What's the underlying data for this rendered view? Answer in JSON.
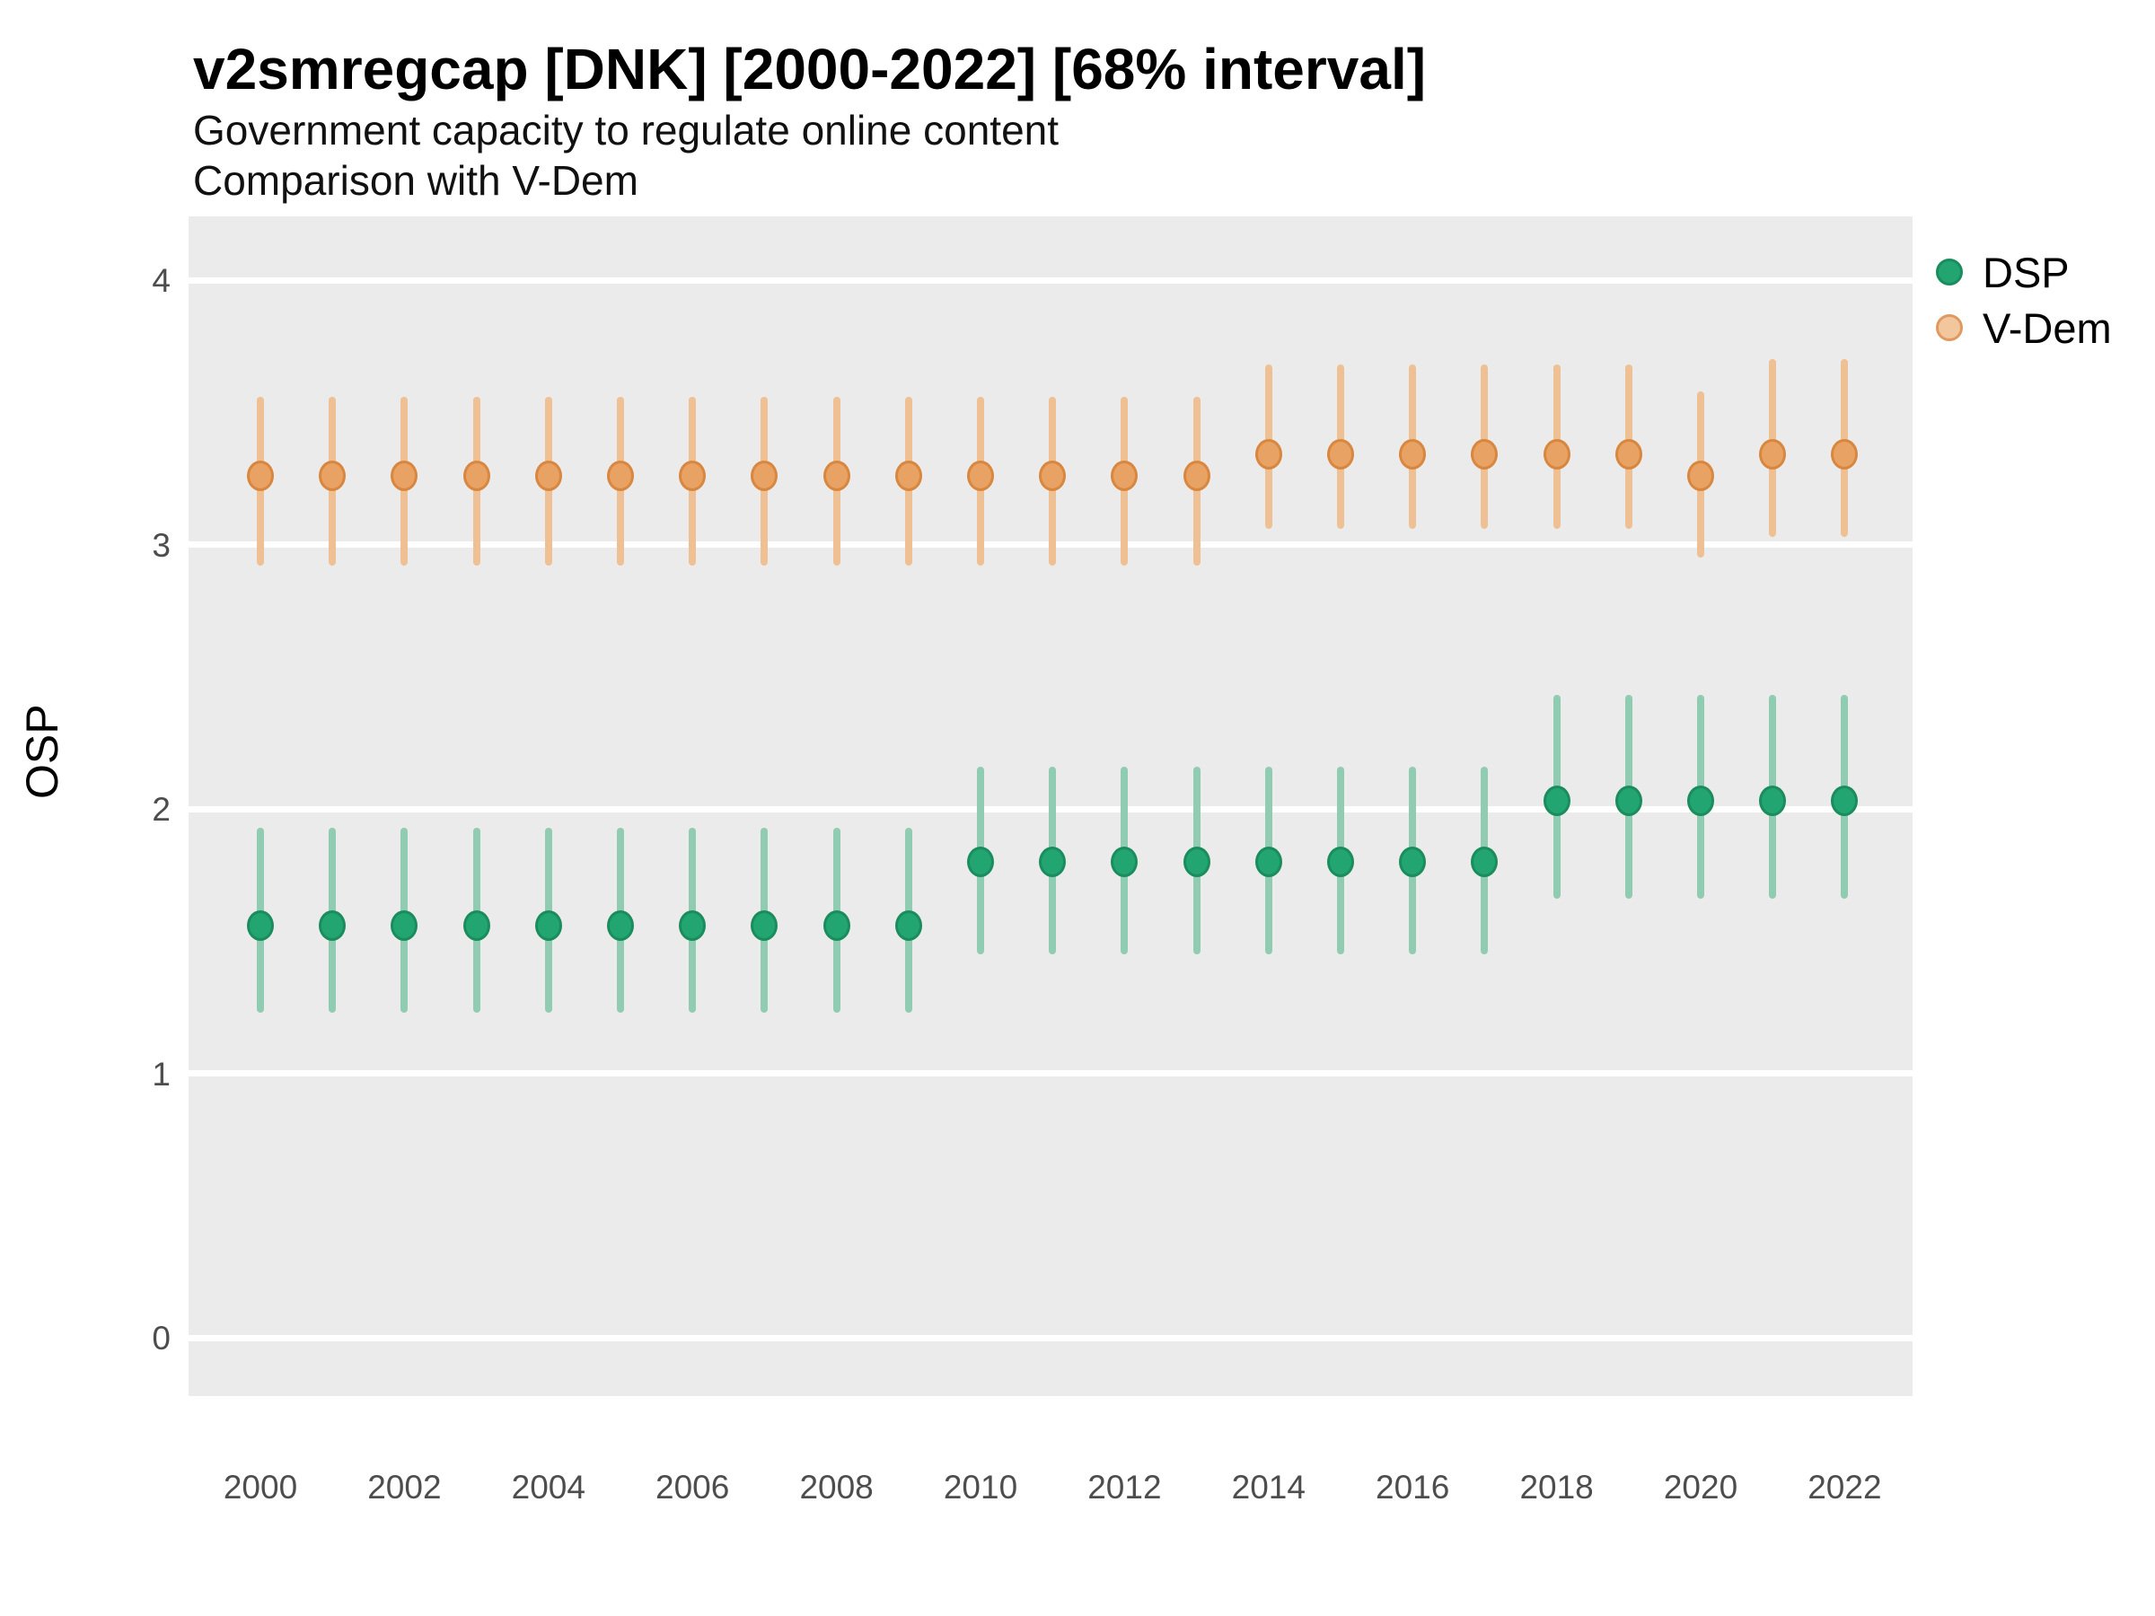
{
  "figure": {
    "title": "v2smregcap [DNK] [2000-2022] [68% interval]",
    "subtitle_line1": "Government capacity to regulate online content",
    "subtitle_line2": "Comparison with V-Dem",
    "y_axis_title": "OSP"
  },
  "legend": {
    "position": "right",
    "entries": [
      {
        "label": "DSP",
        "fill": "#23a571",
        "stroke": "#1b8c5d"
      },
      {
        "label": "V-Dem",
        "fill": "#f2c79e",
        "stroke": "#e09a60"
      }
    ]
  },
  "colors": {
    "panel_bg": "#ebebeb",
    "gridline": "#ffffff",
    "tick_text": "#4d4d4d",
    "dsp_fill": "#23a571",
    "dsp_stroke": "#1b8c5d",
    "dsp_range": "#8fccb2",
    "vdem_fill": "#e8a263",
    "vdem_stroke": "#d9873f",
    "vdem_range": "#eec094"
  },
  "chart_data": {
    "type": "pointrange-scatter",
    "title": "v2smregcap [DNK] [2000-2022] [68% interval]",
    "subtitle": [
      "Government capacity to regulate online content",
      "Comparison with V-Dem"
    ],
    "xlabel": "",
    "ylabel": "OSP",
    "interval": "68%",
    "grid": "major-horizontal-only",
    "legend_position": "right",
    "x_tick_labels": [
      "2000",
      "2002",
      "2004",
      "2006",
      "2008",
      "2010",
      "2012",
      "2014",
      "2016",
      "2018",
      "2020",
      "2022"
    ],
    "y_ticks": [
      0,
      1,
      2,
      3,
      4
    ],
    "xlim": [
      1999,
      2023
    ],
    "ylim": [
      -0.22,
      4.24
    ],
    "series": [
      {
        "name": "DSP",
        "fill": "#23a571",
        "stroke": "#1b8c5d",
        "range_color": "#8fccb2",
        "points": [
          {
            "year": 2000,
            "value": 1.56,
            "low": 1.23,
            "high": 1.93
          },
          {
            "year": 2001,
            "value": 1.56,
            "low": 1.23,
            "high": 1.93
          },
          {
            "year": 2002,
            "value": 1.56,
            "low": 1.23,
            "high": 1.93
          },
          {
            "year": 2003,
            "value": 1.56,
            "low": 1.23,
            "high": 1.93
          },
          {
            "year": 2004,
            "value": 1.56,
            "low": 1.23,
            "high": 1.93
          },
          {
            "year": 2005,
            "value": 1.56,
            "low": 1.23,
            "high": 1.93
          },
          {
            "year": 2006,
            "value": 1.56,
            "low": 1.23,
            "high": 1.93
          },
          {
            "year": 2007,
            "value": 1.56,
            "low": 1.23,
            "high": 1.93
          },
          {
            "year": 2008,
            "value": 1.56,
            "low": 1.23,
            "high": 1.93
          },
          {
            "year": 2009,
            "value": 1.56,
            "low": 1.23,
            "high": 1.93
          },
          {
            "year": 2010,
            "value": 1.8,
            "low": 1.45,
            "high": 2.16
          },
          {
            "year": 2011,
            "value": 1.8,
            "low": 1.45,
            "high": 2.16
          },
          {
            "year": 2012,
            "value": 1.8,
            "low": 1.45,
            "high": 2.16
          },
          {
            "year": 2013,
            "value": 1.8,
            "low": 1.45,
            "high": 2.16
          },
          {
            "year": 2014,
            "value": 1.8,
            "low": 1.45,
            "high": 2.16
          },
          {
            "year": 2015,
            "value": 1.8,
            "low": 1.45,
            "high": 2.16
          },
          {
            "year": 2016,
            "value": 1.8,
            "low": 1.45,
            "high": 2.16
          },
          {
            "year": 2017,
            "value": 1.8,
            "low": 1.45,
            "high": 2.16
          },
          {
            "year": 2018,
            "value": 2.03,
            "low": 1.66,
            "high": 2.43
          },
          {
            "year": 2019,
            "value": 2.03,
            "low": 1.66,
            "high": 2.43
          },
          {
            "year": 2020,
            "value": 2.03,
            "low": 1.66,
            "high": 2.43
          },
          {
            "year": 2021,
            "value": 2.03,
            "low": 1.66,
            "high": 2.43
          },
          {
            "year": 2022,
            "value": 2.03,
            "low": 1.66,
            "high": 2.43
          }
        ]
      },
      {
        "name": "V-Dem",
        "fill": "#e8a263",
        "stroke": "#d9873f",
        "range_color": "#eec094",
        "points": [
          {
            "year": 2000,
            "value": 3.26,
            "low": 2.92,
            "high": 3.56
          },
          {
            "year": 2001,
            "value": 3.26,
            "low": 2.92,
            "high": 3.56
          },
          {
            "year": 2002,
            "value": 3.26,
            "low": 2.92,
            "high": 3.56
          },
          {
            "year": 2003,
            "value": 3.26,
            "low": 2.92,
            "high": 3.56
          },
          {
            "year": 2004,
            "value": 3.26,
            "low": 2.92,
            "high": 3.56
          },
          {
            "year": 2005,
            "value": 3.26,
            "low": 2.92,
            "high": 3.56
          },
          {
            "year": 2006,
            "value": 3.26,
            "low": 2.92,
            "high": 3.56
          },
          {
            "year": 2007,
            "value": 3.26,
            "low": 2.92,
            "high": 3.56
          },
          {
            "year": 2008,
            "value": 3.26,
            "low": 2.92,
            "high": 3.56
          },
          {
            "year": 2009,
            "value": 3.26,
            "low": 2.92,
            "high": 3.56
          },
          {
            "year": 2010,
            "value": 3.26,
            "low": 2.92,
            "high": 3.56
          },
          {
            "year": 2011,
            "value": 3.26,
            "low": 2.92,
            "high": 3.56
          },
          {
            "year": 2012,
            "value": 3.26,
            "low": 2.92,
            "high": 3.56
          },
          {
            "year": 2013,
            "value": 3.26,
            "low": 2.92,
            "high": 3.56
          },
          {
            "year": 2014,
            "value": 3.34,
            "low": 3.06,
            "high": 3.68
          },
          {
            "year": 2015,
            "value": 3.34,
            "low": 3.06,
            "high": 3.68
          },
          {
            "year": 2016,
            "value": 3.34,
            "low": 3.06,
            "high": 3.68
          },
          {
            "year": 2017,
            "value": 3.34,
            "low": 3.06,
            "high": 3.68
          },
          {
            "year": 2018,
            "value": 3.34,
            "low": 3.06,
            "high": 3.68
          },
          {
            "year": 2019,
            "value": 3.34,
            "low": 3.06,
            "high": 3.68
          },
          {
            "year": 2020,
            "value": 3.26,
            "low": 2.95,
            "high": 3.58
          },
          {
            "year": 2021,
            "value": 3.34,
            "low": 3.03,
            "high": 3.7
          },
          {
            "year": 2022,
            "value": 3.34,
            "low": 3.03,
            "high": 3.7
          }
        ]
      }
    ]
  }
}
